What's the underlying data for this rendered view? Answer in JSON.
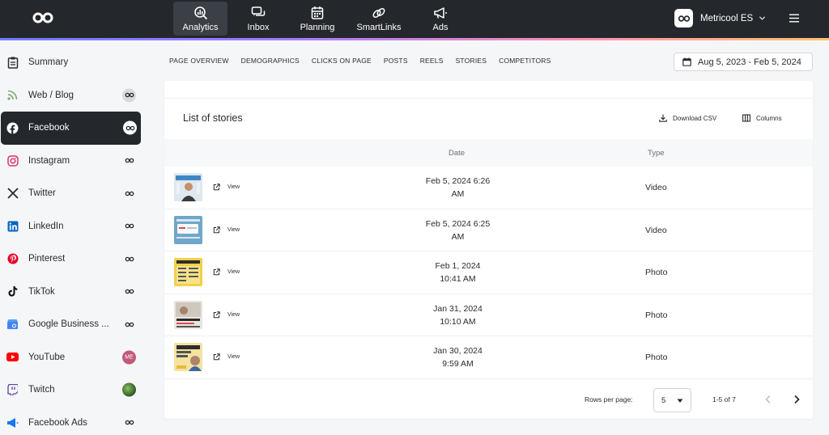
{
  "topbar": {
    "nav": [
      {
        "label": "Analytics",
        "icon": "analytics-icon",
        "active": true
      },
      {
        "label": "Inbox",
        "icon": "inbox-icon"
      },
      {
        "label": "Planning",
        "icon": "calendar-icon"
      },
      {
        "label": "SmartLinks",
        "icon": "link-icon"
      },
      {
        "label": "Ads",
        "icon": "megaphone-icon"
      }
    ],
    "account_name": "Metricool ES"
  },
  "sidebar": {
    "items": [
      {
        "label": "Summary",
        "icon": "clipboard-icon"
      },
      {
        "label": "Web / Blog",
        "icon": "rss-icon"
      },
      {
        "label": "Facebook",
        "icon": "facebook-icon",
        "active": true
      },
      {
        "label": "Instagram",
        "icon": "instagram-icon"
      },
      {
        "label": "Twitter",
        "icon": "x-icon"
      },
      {
        "label": "LinkedIn",
        "icon": "linkedin-icon"
      },
      {
        "label": "Pinterest",
        "icon": "pinterest-icon"
      },
      {
        "label": "TikTok",
        "icon": "tiktok-icon"
      },
      {
        "label": "Google Business ...",
        "icon": "google-business-icon"
      },
      {
        "label": "YouTube",
        "icon": "youtube-icon",
        "badge_text": "ME"
      },
      {
        "label": "Twitch",
        "icon": "twitch-icon"
      },
      {
        "label": "Facebook Ads",
        "icon": "facebook-ads-icon"
      }
    ]
  },
  "tabs": [
    "PAGE OVERVIEW",
    "DEMOGRAPHICS",
    "CLICKS ON PAGE",
    "POSTS",
    "REELS",
    "STORIES",
    "COMPETITORS"
  ],
  "date_range": "Aug 5, 2023 - Feb 5, 2024",
  "stories": {
    "title": "List of stories",
    "download_csv": "Download CSV",
    "columns": "Columns",
    "headers": {
      "date": "Date",
      "type": "Type"
    },
    "view_label": "View",
    "rows": [
      {
        "date1": "Feb 5, 2024 6:26",
        "date2": "AM",
        "type": "Video"
      },
      {
        "date1": "Feb 5, 2024 6:25",
        "date2": "AM",
        "type": "Video"
      },
      {
        "date1": "Feb 1, 2024",
        "date2": "10:41 AM",
        "type": "Photo"
      },
      {
        "date1": "Jan 31, 2024",
        "date2": "10:10 AM",
        "type": "Photo"
      },
      {
        "date1": "Jan 30, 2024",
        "date2": "9:59 AM",
        "type": "Photo"
      }
    ],
    "pager": {
      "rows_per_page_label": "Rows per page:",
      "rows_per_page": "5",
      "range": "1-5 of 7"
    }
  },
  "colors": {
    "topbar": "#24272c",
    "active": "#24272c",
    "accent": "#6f7cff"
  }
}
